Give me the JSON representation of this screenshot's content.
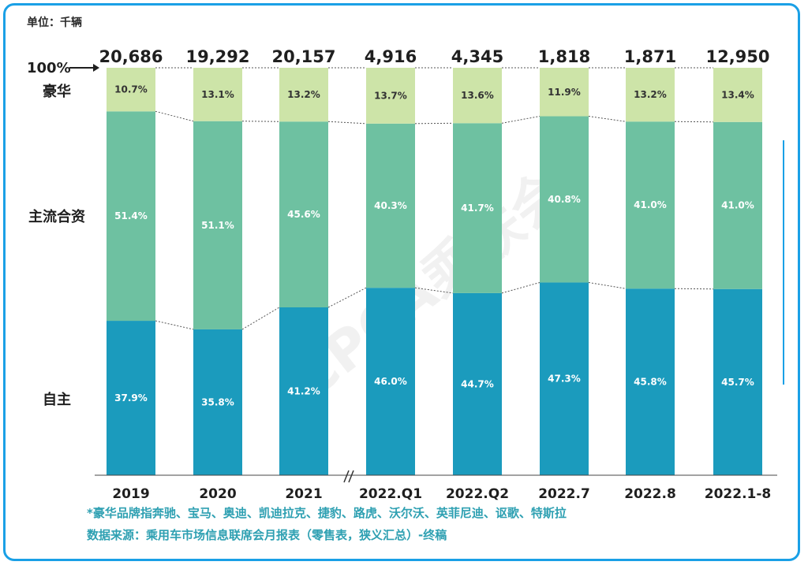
{
  "unit_label": "单位：千辆",
  "top_axis_label": "100%",
  "row_labels": [
    "豪华",
    "主流合资",
    "自主"
  ],
  "footnotes": [
    "*豪华品牌指奔驰、宝马、奥迪、凯迪拉克、捷豹、路虎、沃尔沃、英菲尼迪、讴歌、特斯拉",
    "数据来源：乘用车市场信息联席会月报表（零售表，狭义汇总）-终稿"
  ],
  "watermark": "CPCA乘联会",
  "colors": {
    "luxury": "#cde4a8",
    "joint_venture": "#6ec1a1",
    "domestic": "#1b9bbd",
    "label_dark": "#333333",
    "label_light": "#ffffff",
    "frame": "#1aa0e6",
    "footnote": "#2ea0b2"
  },
  "chart_data": {
    "type": "bar",
    "stacked": true,
    "normalized": true,
    "categories": [
      "2019",
      "2020",
      "2021",
      "2022.Q1",
      "2022.Q2",
      "2022.7",
      "2022.8",
      "2022.1-8"
    ],
    "totals": [
      "20,686",
      "19,292",
      "20,157",
      "4,916",
      "4,345",
      "1,818",
      "1,871",
      "12,950"
    ],
    "axis_break_after": "2021",
    "series": [
      {
        "name": "自主",
        "values": [
          37.9,
          35.8,
          41.2,
          46.0,
          44.7,
          47.3,
          45.8,
          45.7
        ]
      },
      {
        "name": "主流合资",
        "values": [
          51.4,
          51.1,
          45.6,
          40.3,
          41.7,
          40.8,
          41.0,
          41.0
        ]
      },
      {
        "name": "豪华",
        "values": [
          10.7,
          13.1,
          13.2,
          13.7,
          13.6,
          11.9,
          13.2,
          13.4
        ]
      }
    ],
    "ylim": [
      0,
      100
    ]
  }
}
